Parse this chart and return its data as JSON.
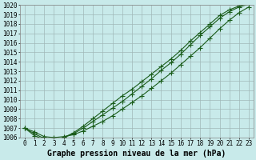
{
  "title": "Graphe pression niveau de la mer (hPa)",
  "background_color": "#c8eaea",
  "grid_color": "#a0b8b8",
  "line_color": "#1a5c1a",
  "x_min": 0,
  "x_max": 23,
  "y_min": 1006,
  "y_max": 1020,
  "series1": [
    1007.0,
    1006.6,
    1006.1,
    1006.0,
    1006.1,
    1006.3,
    1006.7,
    1007.2,
    1007.7,
    1008.3,
    1009.0,
    1009.7,
    1010.4,
    1011.2,
    1012.0,
    1012.8,
    1013.7,
    1014.6,
    1015.5,
    1016.5,
    1017.5,
    1018.4,
    1019.2,
    1019.8
  ],
  "series2": [
    1007.0,
    1006.4,
    1005.9,
    1005.8,
    1006.0,
    1006.4,
    1007.0,
    1007.7,
    1008.4,
    1009.1,
    1009.8,
    1010.6,
    1011.4,
    1012.2,
    1013.1,
    1013.9,
    1014.8,
    1015.8,
    1016.8,
    1017.7,
    1018.6,
    1019.3,
    1019.8,
    1020.1
  ],
  "series3": [
    1007.0,
    1006.2,
    1005.8,
    1005.7,
    1006.0,
    1006.5,
    1007.2,
    1008.0,
    1008.8,
    1009.6,
    1010.4,
    1011.1,
    1011.9,
    1012.7,
    1013.5,
    1014.3,
    1015.2,
    1016.2,
    1017.1,
    1018.0,
    1018.9,
    1019.5,
    1019.9,
    1020.2
  ],
  "marker": "+",
  "markersize": 4,
  "linewidth": 0.8,
  "title_fontsize": 7,
  "tick_fontsize": 5.5
}
